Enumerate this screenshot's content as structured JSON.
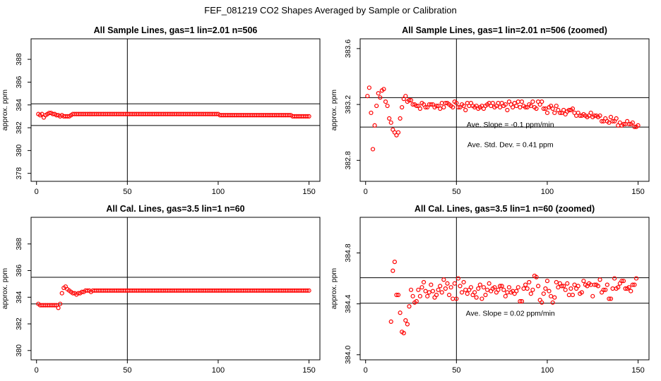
{
  "figure": {
    "title": "FEF_081219  CO2 Shapes Averaged by Sample or Calibration"
  },
  "chart_data": [
    {
      "type": "scatter",
      "title": "All Sample Lines, gas=1 lin=2.01 n=506",
      "xlabel": "",
      "ylabel": "approx. ppm",
      "xlim": [
        -3,
        156
      ],
      "ylim": [
        377.3,
        389.8
      ],
      "xticks": [
        0,
        50,
        100,
        150
      ],
      "yticks": [
        378,
        380,
        382,
        384,
        386,
        388
      ],
      "vline": 50,
      "hlines": [
        382.2,
        384.1
      ],
      "annotations": [],
      "series": [
        {
          "x_start": 1,
          "x_step": 1,
          "values": [
            383.2,
            383.1,
            383.2,
            382.9,
            383.1,
            383.2,
            383.3,
            383.3,
            383.2,
            383.2,
            383.1,
            383.1,
            383.0,
            383.1,
            383.0,
            383.0,
            383.0,
            383.0,
            383.1,
            383.2,
            383.2,
            383.2,
            383.2,
            383.2,
            383.2,
            383.2,
            383.2,
            383.2,
            383.2,
            383.2,
            383.2,
            383.2,
            383.2,
            383.2,
            383.2,
            383.2,
            383.2,
            383.2,
            383.2,
            383.2,
            383.2,
            383.2,
            383.2,
            383.2,
            383.2,
            383.2,
            383.2,
            383.2,
            383.2,
            383.2,
            383.2,
            383.2,
            383.2,
            383.2,
            383.2,
            383.2,
            383.2,
            383.2,
            383.2,
            383.2,
            383.2,
            383.2,
            383.2,
            383.2,
            383.2,
            383.2,
            383.2,
            383.2,
            383.2,
            383.2,
            383.2,
            383.2,
            383.2,
            383.2,
            383.2,
            383.2,
            383.2,
            383.2,
            383.2,
            383.2,
            383.2,
            383.2,
            383.2,
            383.2,
            383.2,
            383.2,
            383.2,
            383.2,
            383.2,
            383.2,
            383.2,
            383.2,
            383.2,
            383.2,
            383.2,
            383.2,
            383.2,
            383.2,
            383.2,
            383.2,
            383.1,
            383.1,
            383.1,
            383.1,
            383.1,
            383.1,
            383.1,
            383.1,
            383.1,
            383.1,
            383.1,
            383.1,
            383.1,
            383.1,
            383.1,
            383.1,
            383.1,
            383.1,
            383.1,
            383.1,
            383.1,
            383.1,
            383.1,
            383.1,
            383.1,
            383.1,
            383.1,
            383.1,
            383.1,
            383.1,
            383.1,
            383.1,
            383.1,
            383.1,
            383.1,
            383.1,
            383.1,
            383.1,
            383.1,
            383.1,
            383.0,
            383.0,
            383.0,
            383.0,
            383.0,
            383.0,
            383.0,
            383.0,
            383.0,
            383.0
          ]
        }
      ]
    },
    {
      "type": "scatter",
      "title": "All Sample Lines, gas=1 lin=2.01 n=506 (zoomed)",
      "xlabel": "",
      "ylabel": "approx. ppm",
      "xlim": [
        -3,
        156
      ],
      "ylim": [
        382.65,
        383.67
      ],
      "xticks": [
        0,
        50,
        100,
        150
      ],
      "yticks": [
        382.8,
        383.2,
        383.6
      ],
      "vline": 50,
      "hlines": [
        383.249,
        383.038
      ],
      "annotations": [
        "Ave. Slope =  -0.1  ppm/min",
        "Ave. Std. Dev. =  0.41  ppm"
      ],
      "series": [
        {
          "x_start": 1,
          "x_step": 1,
          "values": [
            383.26,
            383.32,
            383.14,
            382.88,
            383.05,
            383.19,
            383.28,
            383.25,
            383.3,
            383.31,
            383.22,
            383.19,
            383.1,
            383.07,
            383.02,
            383.0,
            382.98,
            383.0,
            383.1,
            383.18,
            383.24,
            383.26,
            383.22,
            383.23,
            383.23,
            383.2,
            383.2,
            383.19,
            383.19,
            383.17,
            383.21,
            383.2,
            383.18,
            383.18,
            383.2,
            383.2,
            383.2,
            383.18,
            383.19,
            383.19,
            383.17,
            383.21,
            383.18,
            383.21,
            383.21,
            383.2,
            383.19,
            383.18,
            383.22,
            383.21,
            383.18,
            383.18,
            383.2,
            383.19,
            383.16,
            383.21,
            383.19,
            383.21,
            383.19,
            383.18,
            383.19,
            383.17,
            383.18,
            383.19,
            383.17,
            383.19,
            383.2,
            383.21,
            383.19,
            383.21,
            383.18,
            383.19,
            383.21,
            383.18,
            383.21,
            383.19,
            383.2,
            383.16,
            383.22,
            383.2,
            383.18,
            383.21,
            383.19,
            383.22,
            383.18,
            383.22,
            383.19,
            383.18,
            383.18,
            383.2,
            383.19,
            383.22,
            383.18,
            383.17,
            383.22,
            383.2,
            383.22,
            383.17,
            383.17,
            383.14,
            383.18,
            383.19,
            383.17,
            383.14,
            383.19,
            383.16,
            383.14,
            383.14,
            383.16,
            383.13,
            383.15,
            383.16,
            383.16,
            383.17,
            383.14,
            383.12,
            383.14,
            383.12,
            383.12,
            383.13,
            383.12,
            383.11,
            383.12,
            383.14,
            383.11,
            383.12,
            383.12,
            383.11,
            383.12,
            383.08,
            383.08,
            383.1,
            383.08,
            383.07,
            383.11,
            383.08,
            383.08,
            383.1,
            383.05,
            383.07,
            383.05,
            383.06,
            383.06,
            383.08,
            383.06,
            383.06,
            383.07,
            383.04,
            383.04,
            383.05
          ]
        }
      ]
    },
    {
      "type": "scatter",
      "title": "All Cal. Lines, gas=3.5 lin=1 n=60",
      "xlabel": "",
      "ylabel": "approx. ppm",
      "xlim": [
        -3,
        156
      ],
      "ylim": [
        379.3,
        390.0
      ],
      "xticks": [
        0,
        50,
        100,
        150
      ],
      "yticks": [
        380,
        382,
        384,
        386,
        388
      ],
      "vline": 50,
      "hlines": [
        385.5,
        383.5
      ],
      "annotations": [],
      "series": [
        {
          "x_start": 1,
          "x_step": 1,
          "values": [
            383.5,
            383.4,
            383.4,
            383.4,
            383.4,
            383.4,
            383.4,
            383.4,
            383.4,
            383.4,
            383.4,
            383.2,
            383.5,
            384.3,
            384.7,
            384.8,
            384.6,
            384.5,
            384.4,
            384.3,
            384.3,
            384.2,
            384.3,
            384.3,
            384.4,
            384.4,
            384.5,
            384.5,
            384.5,
            384.4,
            384.5,
            384.5,
            384.5,
            384.5,
            384.5,
            384.5,
            384.5,
            384.5,
            384.5,
            384.5,
            384.5,
            384.5,
            384.5,
            384.5,
            384.5,
            384.5,
            384.5,
            384.5,
            384.5,
            384.5,
            384.5,
            384.5,
            384.5,
            384.5,
            384.5,
            384.5,
            384.5,
            384.5,
            384.5,
            384.5,
            384.5,
            384.5,
            384.5,
            384.5,
            384.5,
            384.5,
            384.5,
            384.5,
            384.5,
            384.5,
            384.5,
            384.5,
            384.5,
            384.5,
            384.5,
            384.5,
            384.5,
            384.5,
            384.5,
            384.5,
            384.5,
            384.5,
            384.5,
            384.5,
            384.5,
            384.5,
            384.5,
            384.5,
            384.5,
            384.5,
            384.5,
            384.5,
            384.5,
            384.5,
            384.5,
            384.5,
            384.5,
            384.5,
            384.5,
            384.5,
            384.5,
            384.5,
            384.5,
            384.5,
            384.5,
            384.5,
            384.5,
            384.5,
            384.5,
            384.5,
            384.5,
            384.5,
            384.5,
            384.5,
            384.5,
            384.5,
            384.5,
            384.5,
            384.5,
            384.5,
            384.5,
            384.5,
            384.5,
            384.5,
            384.5,
            384.5,
            384.5,
            384.5,
            384.5,
            384.5,
            384.5,
            384.5,
            384.5,
            384.5,
            384.5,
            384.5,
            384.5,
            384.5,
            384.5,
            384.5,
            384.5,
            384.5,
            384.5,
            384.5,
            384.5,
            384.5,
            384.5,
            384.5,
            384.5,
            384.5
          ]
        }
      ]
    },
    {
      "type": "scatter",
      "title": "All Cal. Lines, gas=3.5 lin=1 n=60 (zoomed)",
      "xlabel": "",
      "ylabel": "approx. ppm",
      "xlim": [
        -3,
        156
      ],
      "ylim": [
        383.96,
        385.08
      ],
      "xticks": [
        0,
        50,
        100,
        150
      ],
      "yticks": [
        384.0,
        384.4,
        384.8
      ],
      "vline": 50,
      "hlines": [
        384.605,
        384.405
      ],
      "annotations": [
        "Ave. Slope =  0.02  ppm/min"
      ],
      "series": [
        {
          "x_start": 14,
          "x_step": 1,
          "values": [
            384.26,
            384.66,
            384.73,
            384.47,
            384.47,
            384.33,
            384.18,
            384.17,
            384.27,
            384.24,
            384.38,
            384.51,
            384.46,
            384.41,
            384.42,
            384.51,
            384.46,
            384.53,
            384.57,
            384.5,
            384.46,
            384.49,
            384.55,
            384.5,
            384.45,
            384.47,
            384.51,
            384.54,
            384.49,
            384.59,
            384.52,
            384.56,
            384.47,
            384.53,
            384.44,
            384.56,
            384.44,
            384.6,
            384.54,
            384.49,
            384.57,
            384.51,
            384.48,
            384.51,
            384.53,
            384.47,
            384.49,
            384.45,
            384.52,
            384.55,
            384.44,
            384.53,
            384.47,
            384.51,
            384.56,
            384.5,
            384.52,
            384.53,
            384.49,
            384.51,
            384.54,
            384.54,
            384.51,
            384.46,
            384.49,
            384.53,
            384.49,
            384.5,
            384.48,
            384.5,
            384.53,
            384.42,
            384.42,
            384.52,
            384.55,
            384.52,
            384.57,
            384.48,
            384.51,
            384.62,
            384.61,
            384.54,
            384.43,
            384.41,
            384.48,
            384.52,
            384.58,
            384.5,
            384.46,
            384.41,
            384.45,
            384.57,
            384.53,
            384.56,
            384.54,
            384.54,
            384.51,
            384.56,
            384.47,
            384.52,
            384.47,
            384.55,
            384.52,
            384.54,
            384.48,
            384.49,
            384.58,
            384.55,
            384.54,
            384.56,
            384.55,
            384.46,
            384.55,
            384.55,
            384.54,
            384.59,
            384.49,
            384.51,
            384.51,
            384.55,
            384.44,
            384.44,
            384.52,
            384.6,
            384.52,
            384.53,
            384.56,
            384.58,
            384.58,
            384.52,
            384.52,
            384.53,
            384.5,
            384.55,
            384.55,
            384.6
          ]
        }
      ]
    }
  ]
}
